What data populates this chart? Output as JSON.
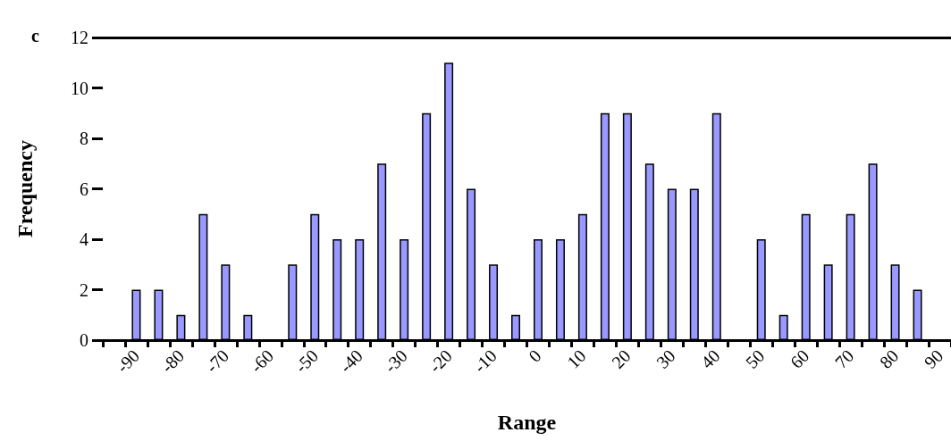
{
  "chart_data": {
    "type": "bar",
    "xlabel": "Range",
    "ylabel": "Frequency",
    "annotations": [
      "c"
    ],
    "categories": [
      null,
      "-90",
      null,
      "-80",
      null,
      "-70",
      null,
      "-60",
      null,
      "-50",
      null,
      "-40",
      null,
      "-30",
      null,
      "-20",
      null,
      "-10",
      null,
      "0",
      null,
      "10",
      null,
      "20",
      null,
      "30",
      null,
      "40",
      null,
      "50",
      null,
      "60",
      null,
      "70",
      null,
      "80",
      null,
      "90"
    ],
    "values": [
      0,
      2,
      2,
      1,
      5,
      3,
      1,
      0,
      3,
      5,
      4,
      4,
      7,
      4,
      9,
      11,
      6,
      3,
      1,
      4,
      4,
      5,
      9,
      9,
      7,
      6,
      6,
      9,
      0,
      4,
      1,
      5,
      3,
      5,
      7,
      3,
      2,
      0
    ],
    "color": "#9999ff",
    "ylim": [
      0,
      12
    ],
    "yticks": [
      0,
      2,
      4,
      6,
      8,
      10,
      12
    ],
    "grid": false
  }
}
